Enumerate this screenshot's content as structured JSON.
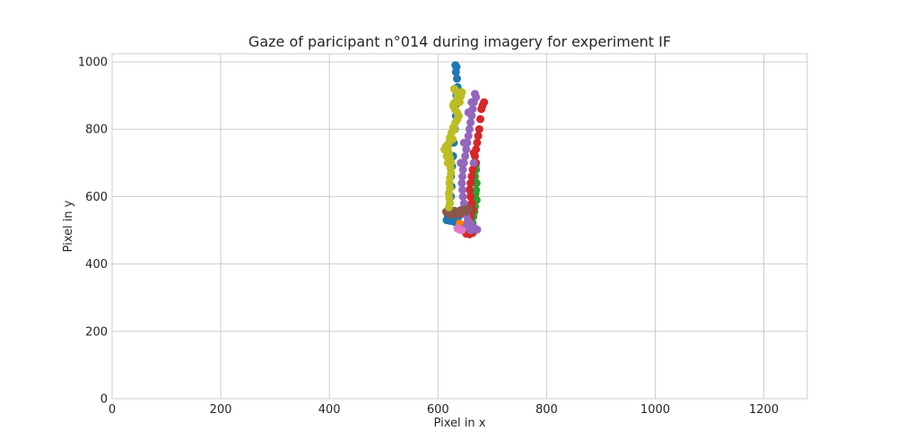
{
  "chart_data": {
    "type": "scatter",
    "title": "Gaze of paricipant n°014 during imagery for experiment IF",
    "xlabel": "Pixel in x",
    "ylabel": "Pixel in y",
    "xlim": [
      0,
      1280
    ],
    "ylim": [
      0,
      1024
    ],
    "x_ticks": [
      0,
      200,
      400,
      600,
      800,
      1000,
      1200
    ],
    "y_ticks": [
      0,
      200,
      400,
      600,
      800,
      1000
    ],
    "grid": true,
    "legend": "none",
    "series": [
      {
        "color": "#1f77b4",
        "points": [
          [
            632,
            990
          ],
          [
            634,
            985
          ],
          [
            633,
            970
          ],
          [
            635,
            950
          ],
          [
            636,
            925
          ],
          [
            634,
            900
          ],
          [
            632,
            870
          ],
          [
            633,
            840
          ],
          [
            631,
            800
          ],
          [
            629,
            760
          ],
          [
            628,
            720
          ],
          [
            626,
            690
          ],
          [
            624,
            660
          ],
          [
            625,
            630
          ],
          [
            624,
            600
          ],
          [
            622,
            580
          ],
          [
            620,
            560
          ],
          [
            618,
            545
          ],
          [
            616,
            530
          ],
          [
            622,
            528
          ],
          [
            630,
            525
          ],
          [
            636,
            530
          ],
          [
            640,
            545
          ],
          [
            642,
            560
          ]
        ]
      },
      {
        "color": "#ff7f0e",
        "points": [
          [
            640,
            520
          ],
          [
            645,
            515
          ],
          [
            648,
            510
          ],
          [
            650,
            505
          ],
          [
            652,
            500
          ],
          [
            648,
            498
          ]
        ]
      },
      {
        "color": "#2ca02c",
        "points": [
          [
            668,
            700
          ],
          [
            670,
            680
          ],
          [
            668,
            660
          ],
          [
            671,
            640
          ],
          [
            670,
            620
          ],
          [
            668,
            600
          ],
          [
            666,
            585
          ],
          [
            668,
            570
          ],
          [
            667,
            555
          ],
          [
            665,
            540
          ],
          [
            662,
            525
          ],
          [
            658,
            510
          ],
          [
            660,
            495
          ],
          [
            664,
            520
          ],
          [
            669,
            610
          ],
          [
            671,
            590
          ],
          [
            667,
            650
          ],
          [
            669,
            690
          ]
        ]
      },
      {
        "color": "#d62728",
        "points": [
          [
            685,
            880
          ],
          [
            682,
            870
          ],
          [
            680,
            860
          ],
          [
            678,
            830
          ],
          [
            676,
            800
          ],
          [
            674,
            780
          ],
          [
            672,
            760
          ],
          [
            670,
            740
          ],
          [
            668,
            720
          ],
          [
            666,
            700
          ],
          [
            664,
            680
          ],
          [
            662,
            660
          ],
          [
            660,
            640
          ],
          [
            658,
            620
          ],
          [
            660,
            600
          ],
          [
            662,
            580
          ],
          [
            664,
            560
          ],
          [
            660,
            540
          ],
          [
            656,
            520
          ],
          [
            654,
            505
          ],
          [
            652,
            490
          ],
          [
            658,
            488
          ],
          [
            664,
            492
          ],
          [
            670,
            700
          ],
          [
            666,
            730
          ]
        ]
      },
      {
        "color": "#9467bd",
        "points": [
          [
            668,
            905
          ],
          [
            670,
            895
          ],
          [
            666,
            880
          ],
          [
            664,
            860
          ],
          [
            662,
            840
          ],
          [
            660,
            820
          ],
          [
            658,
            800
          ],
          [
            656,
            780
          ],
          [
            654,
            760
          ],
          [
            652,
            740
          ],
          [
            650,
            720
          ],
          [
            648,
            700
          ],
          [
            646,
            680
          ],
          [
            645,
            660
          ],
          [
            644,
            640
          ],
          [
            645,
            620
          ],
          [
            646,
            600
          ],
          [
            648,
            580
          ],
          [
            650,
            560
          ],
          [
            652,
            545
          ],
          [
            655,
            530
          ],
          [
            660,
            520
          ],
          [
            664,
            512
          ],
          [
            668,
            505
          ],
          [
            672,
            502
          ],
          [
            660,
            500
          ],
          [
            650,
            510
          ],
          [
            642,
            700
          ],
          [
            648,
            760
          ],
          [
            656,
            850
          ],
          [
            662,
            880
          ],
          [
            666,
            700
          ]
        ]
      },
      {
        "color": "#8c564b",
        "points": [
          [
            615,
            555
          ],
          [
            620,
            552
          ],
          [
            625,
            550
          ],
          [
            630,
            552
          ],
          [
            635,
            555
          ],
          [
            640,
            558
          ],
          [
            645,
            560
          ],
          [
            650,
            562
          ],
          [
            655,
            565
          ],
          [
            658,
            560
          ],
          [
            652,
            555
          ],
          [
            640,
            548
          ],
          [
            628,
            546
          ],
          [
            620,
            548
          ],
          [
            618,
            553
          ],
          [
            630,
            558
          ]
        ]
      },
      {
        "color": "#e377c2",
        "points": [
          [
            636,
            505
          ],
          [
            640,
            502
          ],
          [
            644,
            500
          ]
        ]
      },
      {
        "color": "#bcbd22",
        "points": [
          [
            630,
            920
          ],
          [
            632,
            915
          ],
          [
            636,
            910
          ],
          [
            640,
            905
          ],
          [
            642,
            898
          ],
          [
            638,
            890
          ],
          [
            634,
            885
          ],
          [
            630,
            878
          ],
          [
            628,
            870
          ],
          [
            631,
            860
          ],
          [
            635,
            850
          ],
          [
            638,
            840
          ],
          [
            636,
            830
          ],
          [
            632,
            820
          ],
          [
            628,
            805
          ],
          [
            625,
            790
          ],
          [
            622,
            775
          ],
          [
            620,
            760
          ],
          [
            618,
            745
          ],
          [
            620,
            730
          ],
          [
            622,
            715
          ],
          [
            624,
            700
          ],
          [
            623,
            685
          ],
          [
            624,
            670
          ],
          [
            622,
            655
          ],
          [
            621,
            640
          ],
          [
            622,
            625
          ],
          [
            620,
            610
          ],
          [
            621,
            595
          ],
          [
            622,
            580
          ],
          [
            620,
            568
          ],
          [
            615,
            750
          ],
          [
            612,
            740
          ],
          [
            616,
            720
          ],
          [
            618,
            700
          ],
          [
            630,
            800
          ],
          [
            627,
            770
          ],
          [
            636,
            895
          ],
          [
            640,
            880
          ],
          [
            644,
            910
          ]
        ]
      }
    ]
  }
}
